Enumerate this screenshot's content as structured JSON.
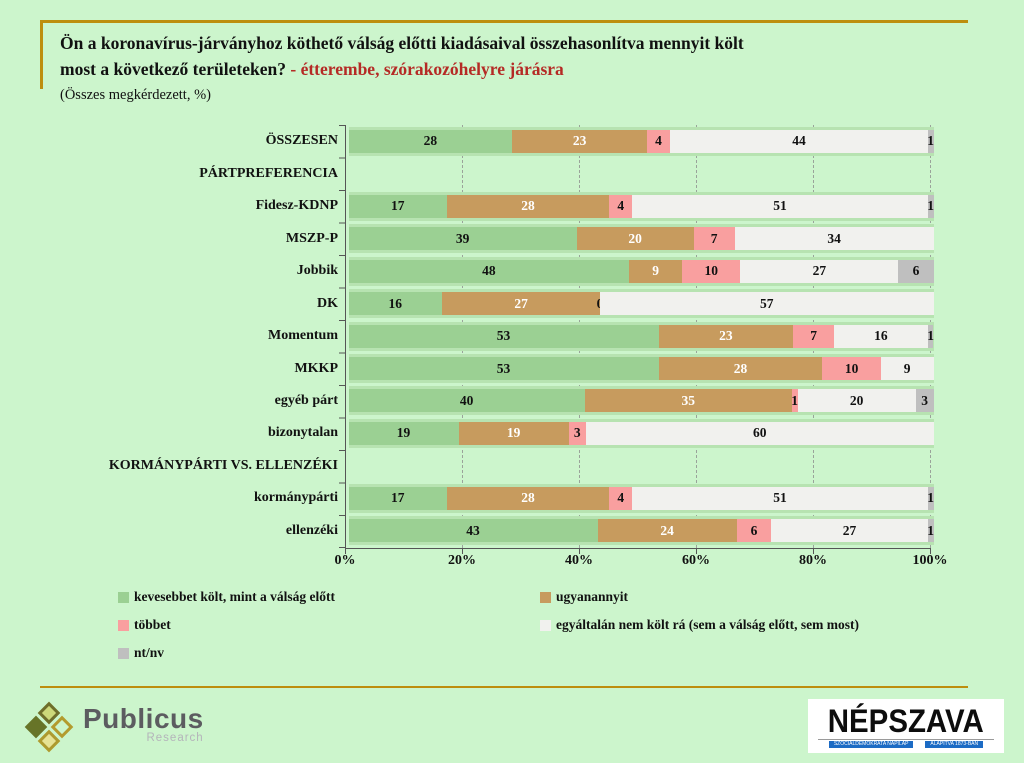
{
  "title": {
    "line1": "Ön a koronavírus-járványhoz köthető válság előtti kiadásaival összehasonlítva mennyit költ",
    "line2_black": "most a következő területeken?",
    "line2_red": " - étterembe, szórakozóhelyre járásra",
    "subtitle": "(Összes megkérdezett, %)"
  },
  "colors": {
    "background": "#ccf5cc",
    "accent_gold": "#bd8e0e",
    "title_red": "#b52a25",
    "row_band": "#b7e3b1",
    "axis": "#555555",
    "nepszava_blue": "#1c6bc4"
  },
  "chart_data": {
    "type": "bar",
    "stacked": true,
    "orientation": "horizontal",
    "xlim": [
      0,
      100
    ],
    "grid": "dashed vertical at 20/40/60/80/100",
    "x_ticks": [
      "0%",
      "20%",
      "40%",
      "60%",
      "80%",
      "100%"
    ],
    "series": [
      {
        "name": "kevesebbet költ, mint a válság előtt",
        "color": "#9bd093",
        "label_color": "#111111"
      },
      {
        "name": "ugyanannyit",
        "color": "#c79b5e",
        "label_color": "#ffffff"
      },
      {
        "name": "többet",
        "color": "#f99f9f",
        "label_color": "#111111"
      },
      {
        "name": "egyáltalán nem költ rá (sem a válság előtt, sem most)",
        "color": "#f1f1ee",
        "label_color": "#111111"
      },
      {
        "name": "nt/nv",
        "color": "#bfbfbf",
        "label_color": "#111111"
      }
    ],
    "rows": [
      {
        "label": "ÖSSZESEN",
        "type": "data",
        "values": [
          28,
          23,
          4,
          44,
          1
        ]
      },
      {
        "label": "PÁRTPREFERENCIA",
        "type": "header",
        "values": null
      },
      {
        "label": "Fidesz-KDNP",
        "type": "data",
        "values": [
          17,
          28,
          4,
          51,
          1
        ]
      },
      {
        "label": "MSZP-P",
        "type": "data",
        "values": [
          39,
          20,
          7,
          34,
          null
        ]
      },
      {
        "label": "Jobbik",
        "type": "data",
        "values": [
          48,
          9,
          10,
          27,
          6
        ]
      },
      {
        "label": "DK",
        "type": "data",
        "values": [
          16,
          27,
          0,
          57,
          null
        ]
      },
      {
        "label": "Momentum",
        "type": "data",
        "values": [
          53,
          23,
          7,
          16,
          1
        ]
      },
      {
        "label": "MKKP",
        "type": "data",
        "values": [
          53,
          28,
          10,
          9,
          null
        ]
      },
      {
        "label": "egyéb párt",
        "type": "data",
        "values": [
          40,
          35,
          1,
          20,
          3
        ]
      },
      {
        "label": "bizonytalan",
        "type": "data",
        "values": [
          19,
          19,
          3,
          60,
          null
        ]
      },
      {
        "label": "KORMÁNYPÁRTI VS. ELLENZÉKI",
        "type": "header",
        "values": null
      },
      {
        "label": "kormánypárti",
        "type": "data",
        "values": [
          17,
          28,
          4,
          51,
          1
        ]
      },
      {
        "label": "ellenzéki",
        "type": "data",
        "values": [
          43,
          24,
          6,
          27,
          1
        ]
      }
    ],
    "legend_position": "bottom, two columns"
  },
  "footer": {
    "publicus": {
      "name": "Publicus",
      "sub": "Research"
    },
    "nepszava": {
      "name": "NÉPSZAVA",
      "tagline_left": "SZOCIÁLDEMOKRATA NAPILAP",
      "tagline_right": "ALAPÍTVA 1873-BAN"
    }
  }
}
